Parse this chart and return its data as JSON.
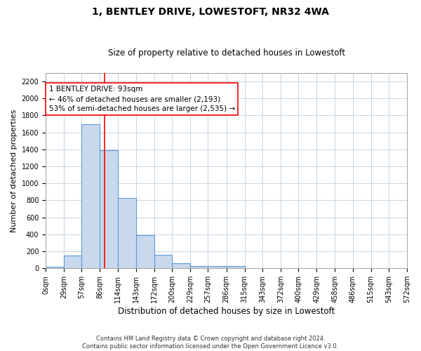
{
  "title": "1, BENTLEY DRIVE, LOWESTOFT, NR32 4WA",
  "subtitle": "Size of property relative to detached houses in Lowestoft",
  "xlabel": "Distribution of detached houses by size in Lowestoft",
  "ylabel": "Number of detached properties",
  "bar_color": "#c9d9ed",
  "bar_edge_color": "#5b9bd5",
  "grid_color": "#c8d4e3",
  "annotation_line1": "1 BENTLEY DRIVE: 93sqm",
  "annotation_line2": "← 46% of detached houses are smaller (2,193)",
  "annotation_line3": "53% of semi-detached houses are larger (2,535) →",
  "property_size": 93,
  "property_line_color": "red",
  "bin_edges": [
    0,
    29,
    57,
    86,
    114,
    143,
    172,
    200,
    229,
    257,
    286,
    315,
    343,
    372,
    400,
    429,
    458,
    486,
    515,
    543,
    572
  ],
  "bin_labels": [
    "0sqm",
    "29sqm",
    "57sqm",
    "86sqm",
    "114sqm",
    "143sqm",
    "172sqm",
    "200sqm",
    "229sqm",
    "257sqm",
    "286sqm",
    "315sqm",
    "343sqm",
    "372sqm",
    "400sqm",
    "429sqm",
    "458sqm",
    "486sqm",
    "515sqm",
    "543sqm",
    "572sqm"
  ],
  "bar_heights": [
    15,
    150,
    1700,
    1390,
    830,
    390,
    160,
    60,
    30,
    25,
    25,
    5,
    0,
    0,
    0,
    0,
    0,
    0,
    0,
    0
  ],
  "ylim": [
    0,
    2300
  ],
  "yticks": [
    0,
    200,
    400,
    600,
    800,
    1000,
    1200,
    1400,
    1600,
    1800,
    2000,
    2200
  ],
  "footer_line1": "Contains HM Land Registry data © Crown copyright and database right 2024.",
  "footer_line2": "Contains public sector information licensed under the Open Government Licence v3.0.",
  "title_fontsize": 10,
  "subtitle_fontsize": 8.5,
  "tick_fontsize": 7,
  "ylabel_fontsize": 8,
  "xlabel_fontsize": 8.5,
  "footer_fontsize": 6,
  "annot_fontsize": 7.5
}
